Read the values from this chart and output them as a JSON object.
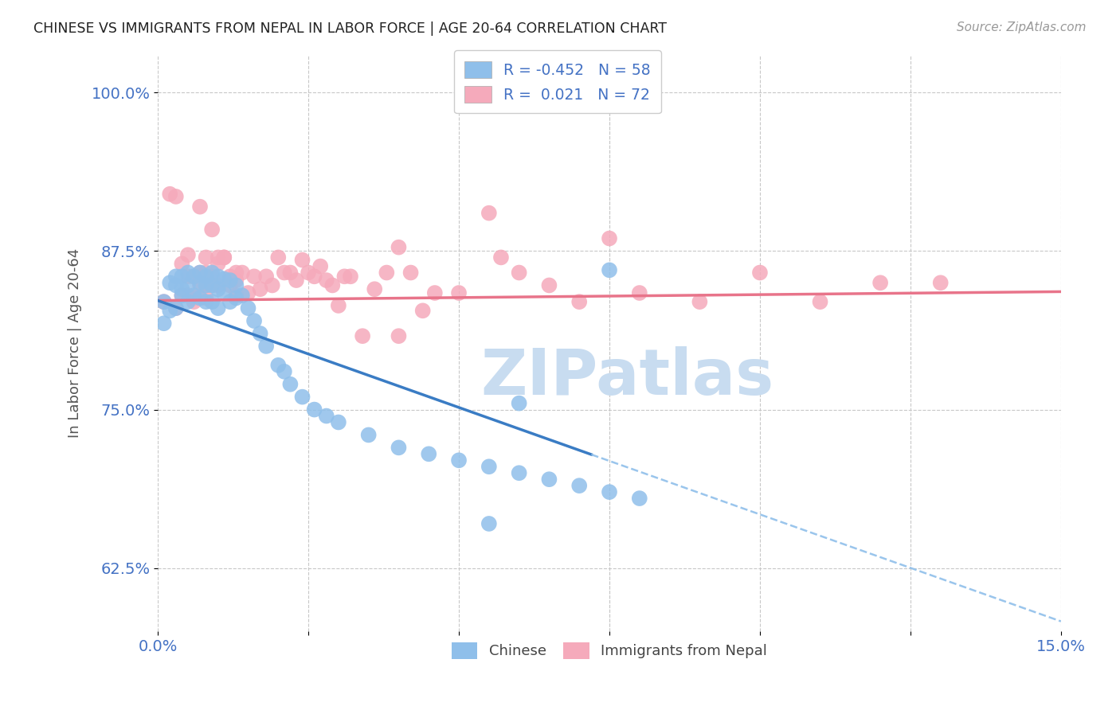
{
  "title": "CHINESE VS IMMIGRANTS FROM NEPAL IN LABOR FORCE | AGE 20-64 CORRELATION CHART",
  "source": "Source: ZipAtlas.com",
  "ylabel": "In Labor Force | Age 20-64",
  "xlim": [
    0.0,
    0.15
  ],
  "ylim": [
    0.575,
    1.03
  ],
  "legend_chinese_R": "R = -0.452",
  "legend_chinese_N": "N = 58",
  "legend_nepal_R": "R =  0.021",
  "legend_nepal_N": "N = 72",
  "chinese_color": "#8FBFEA",
  "nepal_color": "#F5AABB",
  "chinese_line_color": "#3A7CC4",
  "chinese_line_dashed_color": "#8FBFEA",
  "nepal_line_color": "#E8748A",
  "blue_text_color": "#4472C4",
  "watermark_color": "#C8DCF0",
  "background_color": "#FFFFFF",
  "grid_color": "#C8C8C8",
  "chinese_line_x0": 0.0,
  "chinese_line_y0": 0.836,
  "chinese_line_x1": 0.15,
  "chinese_line_y1": 0.583,
  "chinese_line_solid_end": 0.072,
  "nepal_line_x0": 0.0,
  "nepal_line_y0": 0.836,
  "nepal_line_x1": 0.15,
  "nepal_line_y1": 0.843,
  "chinese_x": [
    0.001,
    0.001,
    0.002,
    0.002,
    0.003,
    0.003,
    0.003,
    0.004,
    0.004,
    0.004,
    0.005,
    0.005,
    0.005,
    0.006,
    0.006,
    0.007,
    0.007,
    0.007,
    0.008,
    0.008,
    0.008,
    0.009,
    0.009,
    0.009,
    0.01,
    0.01,
    0.01,
    0.011,
    0.011,
    0.012,
    0.012,
    0.013,
    0.013,
    0.014,
    0.015,
    0.016,
    0.017,
    0.018,
    0.02,
    0.021,
    0.022,
    0.024,
    0.026,
    0.028,
    0.03,
    0.035,
    0.04,
    0.045,
    0.05,
    0.055,
    0.06,
    0.065,
    0.07,
    0.075,
    0.08,
    0.06,
    0.075,
    0.055
  ],
  "chinese_y": [
    0.835,
    0.818,
    0.85,
    0.828,
    0.855,
    0.848,
    0.83,
    0.855,
    0.845,
    0.84,
    0.858,
    0.848,
    0.835,
    0.855,
    0.84,
    0.858,
    0.85,
    0.838,
    0.855,
    0.848,
    0.835,
    0.858,
    0.848,
    0.835,
    0.855,
    0.845,
    0.83,
    0.853,
    0.842,
    0.852,
    0.835,
    0.848,
    0.838,
    0.84,
    0.83,
    0.82,
    0.81,
    0.8,
    0.785,
    0.78,
    0.77,
    0.76,
    0.75,
    0.745,
    0.74,
    0.73,
    0.72,
    0.715,
    0.71,
    0.705,
    0.7,
    0.695,
    0.69,
    0.685,
    0.68,
    0.755,
    0.86,
    0.66
  ],
  "nepal_x": [
    0.001,
    0.002,
    0.003,
    0.004,
    0.005,
    0.005,
    0.006,
    0.007,
    0.008,
    0.008,
    0.009,
    0.009,
    0.01,
    0.01,
    0.011,
    0.012,
    0.013,
    0.013,
    0.014,
    0.015,
    0.016,
    0.017,
    0.018,
    0.019,
    0.02,
    0.021,
    0.022,
    0.023,
    0.024,
    0.025,
    0.026,
    0.027,
    0.028,
    0.029,
    0.03,
    0.031,
    0.032,
    0.034,
    0.036,
    0.038,
    0.04,
    0.042,
    0.044,
    0.046,
    0.05,
    0.055,
    0.057,
    0.06,
    0.065,
    0.07,
    0.08,
    0.09,
    0.1,
    0.11,
    0.12,
    0.13,
    0.003,
    0.004,
    0.005,
    0.006,
    0.006,
    0.007,
    0.007,
    0.008,
    0.008,
    0.009,
    0.01,
    0.011,
    0.012,
    0.013,
    0.04,
    0.075
  ],
  "nepal_y": [
    0.835,
    0.92,
    0.918,
    0.865,
    0.855,
    0.872,
    0.855,
    0.91,
    0.87,
    0.848,
    0.892,
    0.848,
    0.87,
    0.848,
    0.87,
    0.848,
    0.852,
    0.84,
    0.858,
    0.842,
    0.855,
    0.845,
    0.855,
    0.848,
    0.87,
    0.858,
    0.858,
    0.852,
    0.868,
    0.858,
    0.855,
    0.863,
    0.852,
    0.848,
    0.832,
    0.855,
    0.855,
    0.808,
    0.845,
    0.858,
    0.808,
    0.858,
    0.828,
    0.842,
    0.842,
    0.905,
    0.87,
    0.858,
    0.848,
    0.835,
    0.842,
    0.835,
    0.858,
    0.835,
    0.85,
    0.85,
    0.83,
    0.84,
    0.84,
    0.838,
    0.835,
    0.858,
    0.848,
    0.858,
    0.838,
    0.855,
    0.865,
    0.87,
    0.855,
    0.858,
    0.878,
    0.885
  ]
}
